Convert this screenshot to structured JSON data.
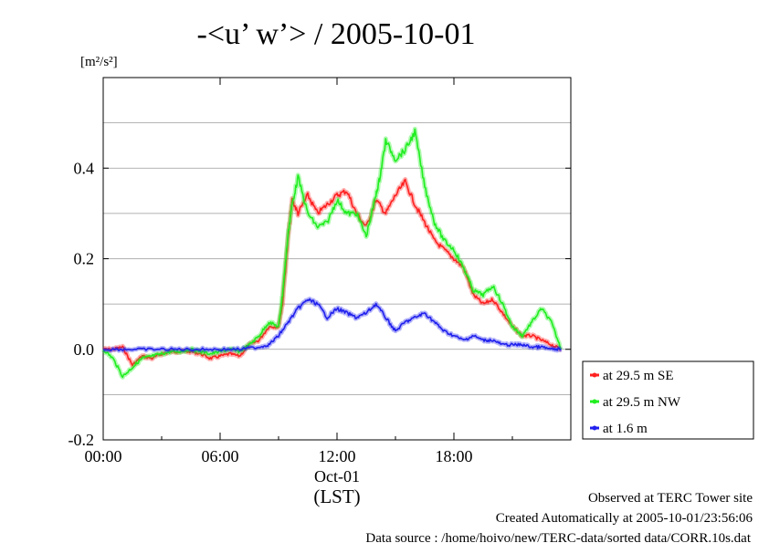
{
  "chart_data": {
    "type": "line",
    "title": "-<u’ w’> / 2005-10-01",
    "ylabel": "[m²/s²]",
    "xlabel": "(LST)",
    "x_ticks": [
      "00:00",
      "06:00",
      "12:00",
      "18:00"
    ],
    "x_date_label": "Oct-01",
    "y_ticks": [
      "-0.2",
      "0.0",
      "0.2",
      "0.4"
    ],
    "xlim_hours": [
      0,
      24
    ],
    "ylim": [
      -0.2,
      0.6
    ],
    "grid": true,
    "legend": "right",
    "series": [
      {
        "name": "at 29.5 m SE",
        "color": "#ff2020",
        "x": [
          0,
          0.5,
          1,
          1.5,
          2,
          2.5,
          3,
          3.5,
          4,
          4.5,
          5,
          5.5,
          6,
          6.5,
          7,
          7.5,
          8,
          8.5,
          9,
          9.2,
          9.5,
          9.7,
          10,
          10.5,
          11,
          11.5,
          12,
          12.5,
          13,
          13.5,
          14,
          14.5,
          15,
          15.5,
          16,
          16.5,
          17,
          17.5,
          18,
          18.5,
          19,
          19.5,
          20,
          20.5,
          21,
          21.5,
          22,
          22.5,
          23,
          23.5
        ],
        "values": [
          0.0,
          0.0,
          0.005,
          -0.035,
          -0.015,
          -0.02,
          -0.01,
          -0.005,
          -0.005,
          -0.005,
          -0.01,
          -0.02,
          -0.015,
          -0.01,
          -0.015,
          0.01,
          0.02,
          0.05,
          0.05,
          0.1,
          0.25,
          0.33,
          0.3,
          0.34,
          0.3,
          0.32,
          0.34,
          0.35,
          0.3,
          0.27,
          0.33,
          0.3,
          0.34,
          0.37,
          0.32,
          0.28,
          0.24,
          0.22,
          0.2,
          0.18,
          0.12,
          0.1,
          0.11,
          0.08,
          0.05,
          0.03,
          0.03,
          0.02,
          0.01,
          0.0
        ]
      },
      {
        "name": "at 29.5 m NW",
        "color": "#20ee20",
        "x": [
          0,
          0.5,
          1,
          1.5,
          2,
          2.5,
          3,
          3.5,
          4,
          4.5,
          5,
          5.5,
          6,
          6.5,
          7,
          7.5,
          8,
          8.5,
          9,
          9.2,
          9.5,
          9.7,
          10,
          10.5,
          11,
          11.5,
          12,
          12.5,
          13,
          13.5,
          14,
          14.2,
          14.5,
          15,
          15.5,
          16,
          16.5,
          17,
          17.5,
          18,
          18.5,
          19,
          19.5,
          20,
          20.5,
          21,
          21.5,
          22,
          22.5,
          23,
          23.5
        ],
        "values": [
          0.0,
          -0.02,
          -0.06,
          -0.04,
          -0.02,
          -0.015,
          -0.01,
          -0.005,
          -0.005,
          0.0,
          -0.005,
          -0.01,
          -0.005,
          0.0,
          -0.005,
          0.01,
          0.03,
          0.06,
          0.05,
          0.12,
          0.26,
          0.32,
          0.38,
          0.3,
          0.27,
          0.28,
          0.33,
          0.3,
          0.3,
          0.25,
          0.34,
          0.38,
          0.46,
          0.42,
          0.44,
          0.48,
          0.36,
          0.28,
          0.24,
          0.22,
          0.18,
          0.13,
          0.12,
          0.14,
          0.1,
          0.05,
          0.03,
          0.06,
          0.09,
          0.06,
          0.0
        ]
      },
      {
        "name": "at 1.6 m",
        "color": "#2020ee",
        "x": [
          0,
          1,
          2,
          3,
          4,
          5,
          6,
          7,
          8,
          8.5,
          9,
          9.5,
          10,
          10.5,
          11,
          11.5,
          12,
          12.5,
          13,
          13.5,
          14,
          14.5,
          15,
          15.5,
          16,
          16.5,
          17,
          17.5,
          18,
          18.5,
          19,
          19.5,
          20,
          20.5,
          21,
          21.5,
          22,
          22.5,
          23,
          23.5
        ],
        "values": [
          0.0,
          0.0,
          0.0,
          0.0,
          0.0,
          0.0,
          0.0,
          0.0,
          0.005,
          0.01,
          0.03,
          0.06,
          0.09,
          0.11,
          0.1,
          0.07,
          0.09,
          0.08,
          0.07,
          0.08,
          0.1,
          0.07,
          0.04,
          0.06,
          0.07,
          0.08,
          0.06,
          0.04,
          0.03,
          0.02,
          0.03,
          0.02,
          0.02,
          0.01,
          0.01,
          0.01,
          0.005,
          0.005,
          0.0,
          0.0
        ]
      }
    ]
  },
  "footer": {
    "line1": "Observed at TERC Tower site",
    "line2": "Created Automatically at 2005-10-01/23:56:06",
    "line3": "Data source : /home/hoivo/new/TERC-data/sorted  data/CORR.10s.dat"
  }
}
